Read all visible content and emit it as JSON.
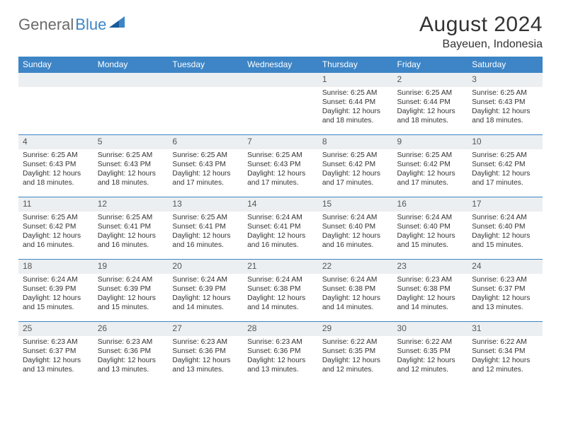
{
  "brand": {
    "part1": "General",
    "part2": "Blue"
  },
  "title": "August 2024",
  "location": "Bayeuen, Indonesia",
  "colors": {
    "header_bg": "#3d85c6",
    "header_text": "#ffffff",
    "daynum_bg": "#eceff1",
    "text": "#333333",
    "rule": "#3d85c6"
  },
  "weekdays": [
    "Sunday",
    "Monday",
    "Tuesday",
    "Wednesday",
    "Thursday",
    "Friday",
    "Saturday"
  ],
  "weeks": [
    [
      null,
      null,
      null,
      null,
      {
        "n": "1",
        "sr": "6:25 AM",
        "ss": "6:44 PM",
        "dl": "12 hours and 18 minutes."
      },
      {
        "n": "2",
        "sr": "6:25 AM",
        "ss": "6:44 PM",
        "dl": "12 hours and 18 minutes."
      },
      {
        "n": "3",
        "sr": "6:25 AM",
        "ss": "6:43 PM",
        "dl": "12 hours and 18 minutes."
      }
    ],
    [
      {
        "n": "4",
        "sr": "6:25 AM",
        "ss": "6:43 PM",
        "dl": "12 hours and 18 minutes."
      },
      {
        "n": "5",
        "sr": "6:25 AM",
        "ss": "6:43 PM",
        "dl": "12 hours and 18 minutes."
      },
      {
        "n": "6",
        "sr": "6:25 AM",
        "ss": "6:43 PM",
        "dl": "12 hours and 17 minutes."
      },
      {
        "n": "7",
        "sr": "6:25 AM",
        "ss": "6:43 PM",
        "dl": "12 hours and 17 minutes."
      },
      {
        "n": "8",
        "sr": "6:25 AM",
        "ss": "6:42 PM",
        "dl": "12 hours and 17 minutes."
      },
      {
        "n": "9",
        "sr": "6:25 AM",
        "ss": "6:42 PM",
        "dl": "12 hours and 17 minutes."
      },
      {
        "n": "10",
        "sr": "6:25 AM",
        "ss": "6:42 PM",
        "dl": "12 hours and 17 minutes."
      }
    ],
    [
      {
        "n": "11",
        "sr": "6:25 AM",
        "ss": "6:42 PM",
        "dl": "12 hours and 16 minutes."
      },
      {
        "n": "12",
        "sr": "6:25 AM",
        "ss": "6:41 PM",
        "dl": "12 hours and 16 minutes."
      },
      {
        "n": "13",
        "sr": "6:25 AM",
        "ss": "6:41 PM",
        "dl": "12 hours and 16 minutes."
      },
      {
        "n": "14",
        "sr": "6:24 AM",
        "ss": "6:41 PM",
        "dl": "12 hours and 16 minutes."
      },
      {
        "n": "15",
        "sr": "6:24 AM",
        "ss": "6:40 PM",
        "dl": "12 hours and 16 minutes."
      },
      {
        "n": "16",
        "sr": "6:24 AM",
        "ss": "6:40 PM",
        "dl": "12 hours and 15 minutes."
      },
      {
        "n": "17",
        "sr": "6:24 AM",
        "ss": "6:40 PM",
        "dl": "12 hours and 15 minutes."
      }
    ],
    [
      {
        "n": "18",
        "sr": "6:24 AM",
        "ss": "6:39 PM",
        "dl": "12 hours and 15 minutes."
      },
      {
        "n": "19",
        "sr": "6:24 AM",
        "ss": "6:39 PM",
        "dl": "12 hours and 15 minutes."
      },
      {
        "n": "20",
        "sr": "6:24 AM",
        "ss": "6:39 PM",
        "dl": "12 hours and 14 minutes."
      },
      {
        "n": "21",
        "sr": "6:24 AM",
        "ss": "6:38 PM",
        "dl": "12 hours and 14 minutes."
      },
      {
        "n": "22",
        "sr": "6:24 AM",
        "ss": "6:38 PM",
        "dl": "12 hours and 14 minutes."
      },
      {
        "n": "23",
        "sr": "6:23 AM",
        "ss": "6:38 PM",
        "dl": "12 hours and 14 minutes."
      },
      {
        "n": "24",
        "sr": "6:23 AM",
        "ss": "6:37 PM",
        "dl": "12 hours and 13 minutes."
      }
    ],
    [
      {
        "n": "25",
        "sr": "6:23 AM",
        "ss": "6:37 PM",
        "dl": "12 hours and 13 minutes."
      },
      {
        "n": "26",
        "sr": "6:23 AM",
        "ss": "6:36 PM",
        "dl": "12 hours and 13 minutes."
      },
      {
        "n": "27",
        "sr": "6:23 AM",
        "ss": "6:36 PM",
        "dl": "12 hours and 13 minutes."
      },
      {
        "n": "28",
        "sr": "6:23 AM",
        "ss": "6:36 PM",
        "dl": "12 hours and 13 minutes."
      },
      {
        "n": "29",
        "sr": "6:22 AM",
        "ss": "6:35 PM",
        "dl": "12 hours and 12 minutes."
      },
      {
        "n": "30",
        "sr": "6:22 AM",
        "ss": "6:35 PM",
        "dl": "12 hours and 12 minutes."
      },
      {
        "n": "31",
        "sr": "6:22 AM",
        "ss": "6:34 PM",
        "dl": "12 hours and 12 minutes."
      }
    ]
  ],
  "labels": {
    "sunrise": "Sunrise:",
    "sunset": "Sunset:",
    "daylight": "Daylight:"
  }
}
